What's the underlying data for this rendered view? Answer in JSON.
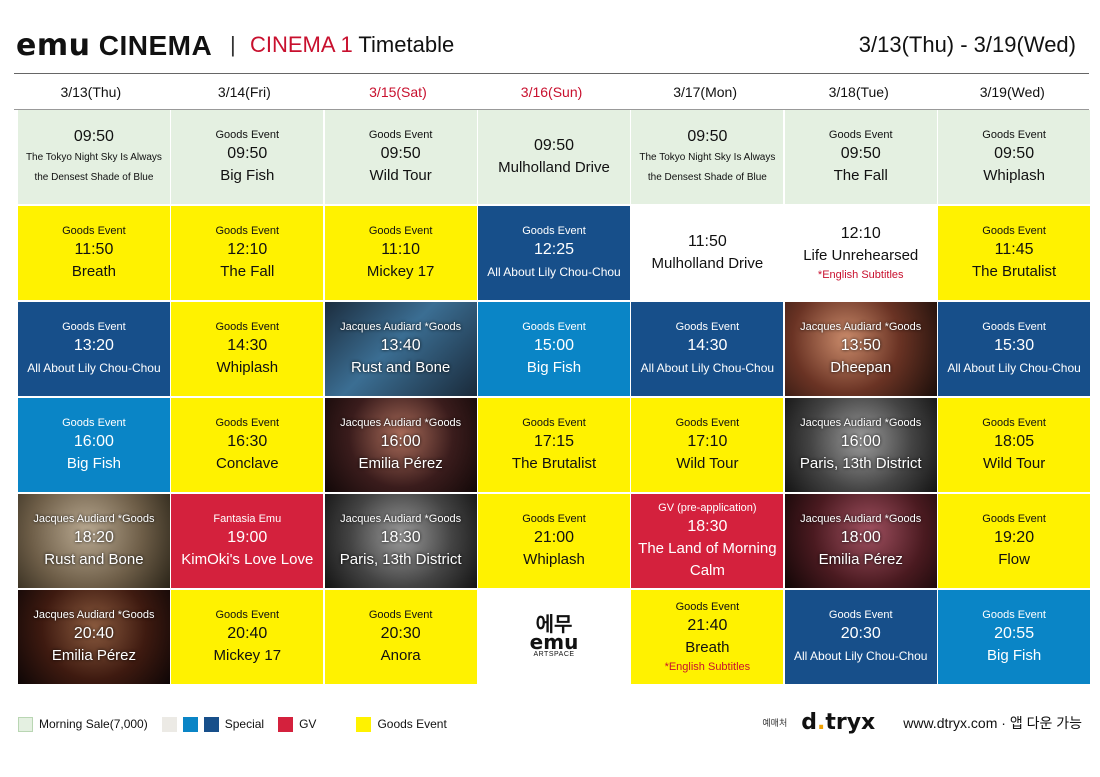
{
  "header": {
    "brand_emu": "emu",
    "brand_cinema": " CINEMA",
    "separator": "|",
    "hall": "CINEMA 1",
    "subtitle": " Timetable",
    "range": "3/13(Thu) - 3/19(Wed)"
  },
  "days": [
    "3/13(Thu)",
    "3/14(Fri)",
    "3/15(Sat)",
    "3/16(Sun)",
    "3/17(Mon)",
    "3/18(Tue)",
    "3/19(Wed)"
  ],
  "weekend_days": [
    2,
    3
  ],
  "columns": [
    [
      {
        "style": "morning",
        "tag": "",
        "time": "09:50",
        "title": "",
        "small": [
          "The Tokyo Night Sky Is Always",
          "the Densest Shade of Blue"
        ]
      },
      {
        "style": "yellow",
        "tag": "Goods Event",
        "time": "11:50",
        "title": "Breath"
      },
      {
        "style": "navy",
        "tag": "Goods Event",
        "time": "13:20",
        "title": "All About Lily Chou-Chou",
        "titleSize": "sm"
      },
      {
        "style": "blue",
        "tag": "Goods Event",
        "time": "16:00",
        "title": "Big Fish"
      },
      {
        "style": "photo",
        "photo": "ph5",
        "tag": "Jacques Audiard *Goods",
        "time": "18:20",
        "title": "Rust and Bone"
      },
      {
        "style": "photo",
        "photo": "ph6",
        "tag": "Jacques Audiard *Goods",
        "time": "20:40",
        "title": "Emilia Pérez"
      }
    ],
    [
      {
        "style": "morning",
        "tag": "Goods Event",
        "time": "09:50",
        "title": "Big Fish"
      },
      {
        "style": "yellow",
        "tag": "Goods Event",
        "time": "12:10",
        "title": "The Fall"
      },
      {
        "style": "yellow",
        "tag": "Goods Event",
        "time": "14:30",
        "title": "Whiplash"
      },
      {
        "style": "yellow",
        "tag": "Goods Event",
        "time": "16:30",
        "title": "Conclave"
      },
      {
        "style": "red",
        "tag": "Fantasia Emu",
        "time": "19:00",
        "title": "KimOki's Love Love"
      },
      {
        "style": "yellow",
        "tag": "Goods Event",
        "time": "20:40",
        "title": "Mickey 17"
      }
    ],
    [
      {
        "style": "morning",
        "tag": "Goods Event",
        "time": "09:50",
        "title": "Wild Tour"
      },
      {
        "style": "yellow",
        "tag": "Goods Event",
        "time": "11:10",
        "title": "Mickey 17"
      },
      {
        "style": "photo",
        "photo": "ph1",
        "tag": "Jacques Audiard *Goods",
        "time": "13:40",
        "title": "Rust and Bone"
      },
      {
        "style": "photo",
        "photo": "ph2",
        "tag": "Jacques Audiard *Goods",
        "time": "16:00",
        "title": "Emilia Pérez"
      },
      {
        "style": "photo",
        "photo": "ph3",
        "tag": "Jacques Audiard *Goods",
        "time": "18:30",
        "title": "Paris, 13th District"
      },
      {
        "style": "yellow",
        "tag": "Goods Event",
        "time": "20:30",
        "title": "Anora"
      }
    ],
    [
      {
        "style": "morning",
        "tag": "",
        "time": "09:50",
        "title": "Mulholland Drive"
      },
      {
        "style": "navy",
        "tag": "Goods Event",
        "time": "12:25",
        "title": "All About Lily Chou-Chou",
        "titleSize": "sm"
      },
      {
        "style": "blue",
        "tag": "Goods Event",
        "time": "15:00",
        "title": "Big Fish"
      },
      {
        "style": "yellow",
        "tag": "Goods Event",
        "time": "17:15",
        "title": "The Brutalist"
      },
      {
        "style": "yellow",
        "tag": "Goods Event",
        "time": "21:00",
        "title": "Whiplash"
      },
      {
        "style": "logo",
        "logo": "에무",
        "logoEn": "emu",
        "logoSub": "ARTSPACE"
      }
    ],
    [
      {
        "style": "morning",
        "tag": "",
        "time": "09:50",
        "title": "",
        "small": [
          "The Tokyo Night Sky Is Always",
          "the Densest Shade of Blue"
        ]
      },
      {
        "style": "white",
        "tag": "",
        "time": "11:50",
        "title": "Mulholland Drive"
      },
      {
        "style": "navy",
        "tag": "Goods Event",
        "time": "14:30",
        "title": "All About Lily Chou-Chou",
        "titleSize": "sm"
      },
      {
        "style": "yellow",
        "tag": "Goods Event",
        "time": "17:10",
        "title": "Wild Tour"
      },
      {
        "style": "red",
        "tag": "GV (pre-application)",
        "time": "18:30",
        "title": "The Land of Morning Calm"
      },
      {
        "style": "yellow",
        "tag": "Goods Event",
        "time": "21:40",
        "title": "Breath",
        "note": "*English Subtitles"
      }
    ],
    [
      {
        "style": "morning",
        "tag": "Goods Event",
        "time": "09:50",
        "title": "The Fall"
      },
      {
        "style": "white",
        "tag": "",
        "time": "12:10",
        "title": "Life Unrehearsed",
        "note": "*English Subtitles"
      },
      {
        "style": "photo",
        "photo": "ph4",
        "tag": "Jacques Audiard *Goods",
        "time": "13:50",
        "title": "Dheepan"
      },
      {
        "style": "photo",
        "photo": "ph3",
        "tag": "Jacques Audiard *Goods",
        "time": "16:00",
        "title": "Paris, 13th District"
      },
      {
        "style": "photo",
        "photo": "ph7",
        "tag": "Jacques Audiard *Goods",
        "time": "18:00",
        "title": "Emilia Pérez"
      },
      {
        "style": "navy",
        "tag": "Goods Event",
        "time": "20:30",
        "title": "All About Lily Chou-Chou",
        "titleSize": "sm"
      }
    ],
    [
      {
        "style": "morning",
        "tag": "Goods Event",
        "time": "09:50",
        "title": "Whiplash"
      },
      {
        "style": "yellow",
        "tag": "Goods Event",
        "time": "11:45",
        "title": "The Brutalist"
      },
      {
        "style": "navy",
        "tag": "Goods Event",
        "time": "15:30",
        "title": "All About Lily Chou-Chou",
        "titleSize": "sm"
      },
      {
        "style": "yellow",
        "tag": "Goods Event",
        "time": "18:05",
        "title": "Wild Tour"
      },
      {
        "style": "yellow",
        "tag": "Goods Event",
        "time": "19:20",
        "title": "Flow"
      },
      {
        "style": "blue",
        "tag": "Goods Event",
        "time": "20:55",
        "title": "Big Fish"
      }
    ]
  ],
  "legend": {
    "morning": "Morning Sale(7,000)",
    "special": "Special",
    "gv": "GV",
    "goods": "Goods Event"
  },
  "footer": {
    "ticket_label": "예매처",
    "dtryx_a": "d",
    "dtryx_dot": ".",
    "dtryx_b": "tryx",
    "url": "www.dtryx.com · 앱 다운 가능"
  },
  "colors": {
    "morning": "#e4f0e1",
    "yellow": "#fff200",
    "navy": "#174f8a",
    "blue": "#0a85c6",
    "red": "#d4213d",
    "accent_red": "#c8102e"
  }
}
